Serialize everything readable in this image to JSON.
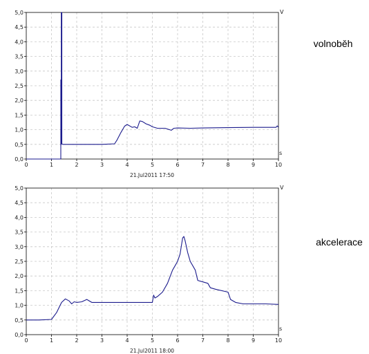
{
  "chart_data": [
    {
      "type": "line",
      "title": "",
      "label": "volnoběh",
      "xlabel": "s",
      "ylabel": "V",
      "timestamp": "21.Jul2011 17:50",
      "xlim": [
        0,
        10
      ],
      "ylim": [
        0,
        5
      ],
      "grid": true,
      "line_color": "#1a1a8c",
      "x_ticks": [
        "0",
        "1",
        "2",
        "3",
        "4",
        "5",
        "6",
        "7",
        "8",
        "9",
        "10"
      ],
      "y_ticks": [
        "0,0",
        "0,5",
        "1,0",
        "1,5",
        "2,0",
        "2,5",
        "3,0",
        "3,5",
        "4,0",
        "4,5",
        "5,0"
      ],
      "series": [
        {
          "x": [
            0,
            1.37,
            1.37,
            1.38,
            1.38,
            1.39,
            1.39,
            1.41,
            1.41,
            1.45,
            2.0,
            3.0,
            3.5,
            3.6,
            3.75,
            3.9,
            4.0,
            4.2,
            4.3,
            4.4,
            4.5,
            4.6,
            4.75,
            4.9,
            5.0,
            5.2,
            5.5,
            5.75,
            5.85,
            6.0,
            6.5,
            7.0,
            8.0,
            9.0,
            9.9,
            9.95,
            10.0
          ],
          "y": [
            0,
            0,
            2.7,
            2.7,
            0.5,
            0.5,
            5.0,
            5.0,
            0.52,
            0.5,
            0.5,
            0.5,
            0.52,
            0.65,
            0.9,
            1.12,
            1.18,
            1.08,
            1.1,
            1.05,
            1.3,
            1.28,
            1.2,
            1.15,
            1.1,
            1.05,
            1.05,
            0.98,
            1.05,
            1.06,
            1.05,
            1.06,
            1.07,
            1.08,
            1.08,
            1.13,
            1.08
          ]
        }
      ]
    },
    {
      "type": "line",
      "title": "",
      "label": "akcelerace",
      "xlabel": "s",
      "ylabel": "V",
      "timestamp": "21.Jul2011 18:00",
      "xlim": [
        0,
        10
      ],
      "ylim": [
        0,
        5
      ],
      "grid": true,
      "line_color": "#1a1a8c",
      "x_ticks": [
        "0",
        "1",
        "2",
        "3",
        "4",
        "5",
        "6",
        "7",
        "8",
        "9",
        "10"
      ],
      "y_ticks": [
        "0,0",
        "0,5",
        "1,0",
        "1,5",
        "2,0",
        "2,5",
        "3,0",
        "3,5",
        "4,0",
        "4,5",
        "5,0"
      ],
      "series": [
        {
          "x": [
            0,
            0.5,
            1.0,
            1.2,
            1.4,
            1.55,
            1.7,
            1.8,
            1.9,
            2.0,
            2.2,
            2.4,
            2.6,
            3.0,
            3.5,
            4.0,
            4.5,
            5.0,
            5.05,
            5.1,
            5.2,
            5.4,
            5.6,
            5.8,
            6.0,
            6.1,
            6.2,
            6.25,
            6.3,
            6.4,
            6.5,
            6.7,
            6.8,
            7.0,
            7.2,
            7.3,
            7.5,
            8.0,
            8.1,
            8.3,
            8.6,
            9.0,
            9.5,
            10.0
          ],
          "y": [
            0.5,
            0.5,
            0.52,
            0.75,
            1.1,
            1.22,
            1.15,
            1.05,
            1.12,
            1.1,
            1.12,
            1.2,
            1.1,
            1.1,
            1.1,
            1.1,
            1.1,
            1.1,
            1.35,
            1.25,
            1.3,
            1.45,
            1.75,
            2.2,
            2.5,
            2.75,
            3.3,
            3.35,
            3.2,
            2.8,
            2.5,
            2.2,
            1.85,
            1.8,
            1.75,
            1.6,
            1.55,
            1.45,
            1.2,
            1.1,
            1.05,
            1.05,
            1.05,
            1.03
          ]
        }
      ]
    }
  ]
}
